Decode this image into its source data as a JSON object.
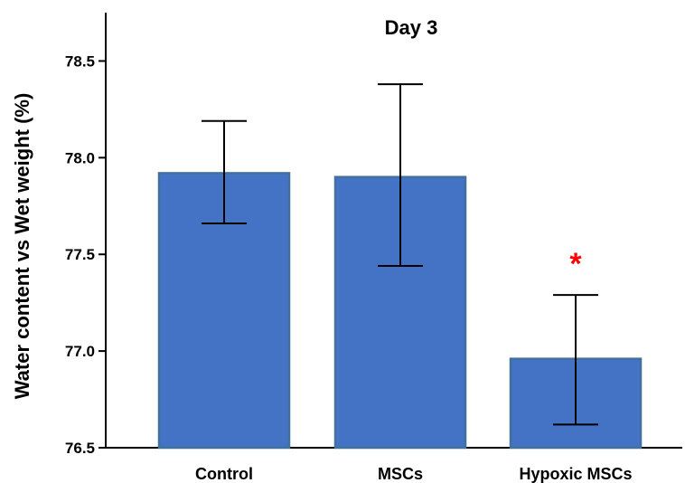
{
  "chart_data": {
    "type": "bar",
    "title": "Day 3",
    "xlabel": "",
    "ylabel": "Water content vs Wet weight (%)",
    "categories": [
      "Control",
      "MSCs",
      "Hypoxic MSCs"
    ],
    "values": [
      77.92,
      77.9,
      76.96
    ],
    "error_low": [
      77.66,
      77.44,
      76.62
    ],
    "error_high": [
      78.19,
      78.38,
      77.29
    ],
    "ylim": [
      76.5,
      78.75
    ],
    "yticks": [
      "76.5",
      "77.0",
      "77.5",
      "78.0",
      "78.5"
    ],
    "annotations": [
      {
        "category": "Hypoxic MSCs",
        "text": "*",
        "y": 77.5,
        "color": "#ff0000"
      }
    ],
    "bar_color": "#4472c4",
    "bar_edge_color": "#41719c",
    "grid": false,
    "legend": "none"
  }
}
